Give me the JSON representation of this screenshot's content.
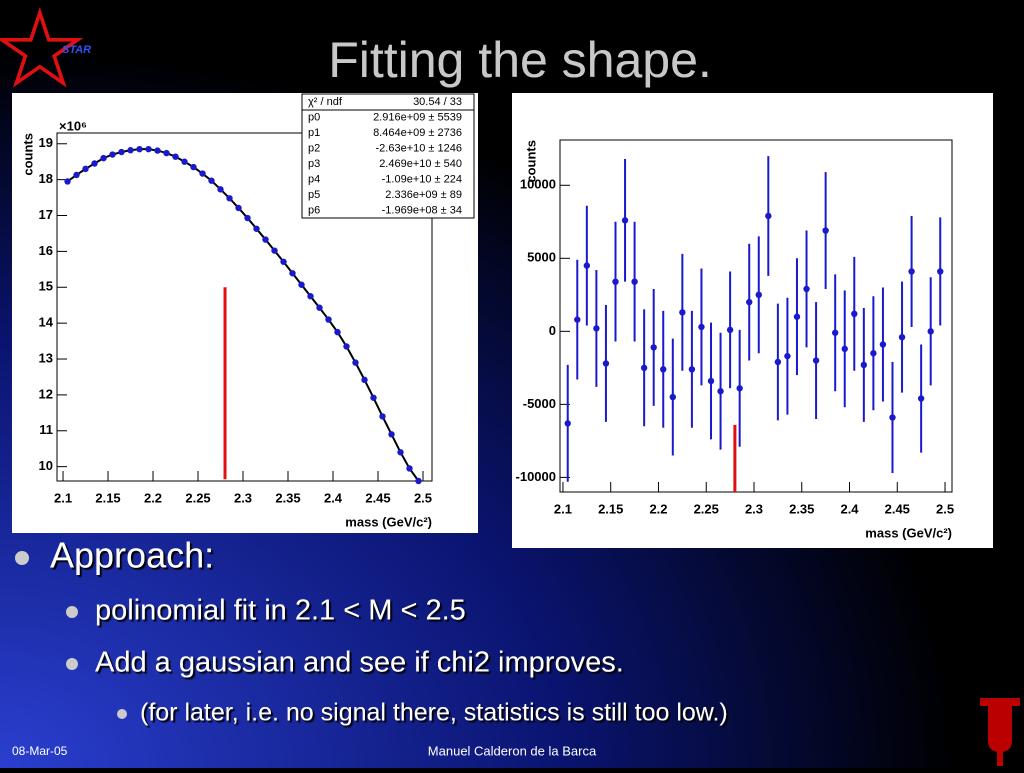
{
  "title": "Fitting the shape.",
  "logo": "STAR",
  "bullets": [
    {
      "level": 1,
      "text": "Approach:"
    },
    {
      "level": 2,
      "text": "polinomial fit in 2.1 < M < 2.5"
    },
    {
      "level": 2,
      "text": "Add a gaussian and see if chi2 improves."
    },
    {
      "level": 3,
      "text": "(for later, i.e. no signal there, statistics is still too low.)"
    }
  ],
  "footer": {
    "date": "08-Mar-05",
    "author": "Manuel Calderon de la Barca"
  },
  "chart_data": [
    {
      "type": "scatter",
      "xlabel": "mass (GeV/c²)",
      "ylabel": "counts",
      "multiplier": "×10⁶",
      "color": "#1a1acc",
      "line_color": "#000000",
      "x": [
        2.105,
        2.115,
        2.125,
        2.135,
        2.145,
        2.155,
        2.165,
        2.175,
        2.185,
        2.195,
        2.205,
        2.215,
        2.225,
        2.235,
        2.245,
        2.255,
        2.265,
        2.275,
        2.285,
        2.295,
        2.305,
        2.315,
        2.325,
        2.335,
        2.345,
        2.355,
        2.365,
        2.375,
        2.385,
        2.395,
        2.405,
        2.415,
        2.425,
        2.435,
        2.445,
        2.455,
        2.465,
        2.475,
        2.485,
        2.495
      ],
      "values": [
        17.95,
        18.13,
        18.3,
        18.45,
        18.6,
        18.7,
        18.77,
        18.82,
        18.85,
        18.85,
        18.81,
        18.74,
        18.64,
        18.5,
        18.35,
        18.17,
        17.97,
        17.73,
        17.48,
        17.21,
        16.93,
        16.63,
        16.33,
        16.02,
        15.71,
        15.39,
        15.07,
        14.75,
        14.43,
        14.1,
        13.75,
        13.35,
        12.9,
        12.42,
        11.92,
        11.4,
        10.9,
        10.4,
        9.95,
        9.6
      ],
      "xlim": [
        2.0933,
        2.51
      ],
      "ylim": [
        9.6,
        19.3
      ],
      "xticks": [
        2.1,
        2.15,
        2.2,
        2.25,
        2.3,
        2.35,
        2.4,
        2.45,
        2.5
      ],
      "yticks": [
        10,
        11,
        12,
        13,
        14,
        15,
        16,
        17,
        18,
        19
      ],
      "marker": {
        "x": 2.28,
        "y": [
          9.65,
          15
        ],
        "color": "#e01010"
      },
      "stats": [
        {
          "name": "χ² / ndf",
          "value": "30.54 / 33"
        },
        {
          "name": "p0",
          "value": "2.916e+09 ± 5539"
        },
        {
          "name": "p1",
          "value": "8.464e+09 ± 2736"
        },
        {
          "name": "p2",
          "value": "-2.63e+10 ± 1246"
        },
        {
          "name": "p3",
          "value": "2.469e+10 ± 540"
        },
        {
          "name": "p4",
          "value": "-1.09e+10 ± 224"
        },
        {
          "name": "p5",
          "value": "2.336e+09 ± 89"
        },
        {
          "name": "p6",
          "value": "-1.969e+08 ± 34"
        }
      ]
    },
    {
      "type": "scatter",
      "xlabel": "mass (GeV/c²)",
      "ylabel": "counts",
      "color": "#1a1acc",
      "x": [
        2.105,
        2.115,
        2.125,
        2.135,
        2.145,
        2.155,
        2.165,
        2.175,
        2.185,
        2.195,
        2.205,
        2.215,
        2.225,
        2.235,
        2.245,
        2.255,
        2.265,
        2.275,
        2.285,
        2.295,
        2.305,
        2.315,
        2.325,
        2.335,
        2.345,
        2.355,
        2.365,
        2.375,
        2.385,
        2.395,
        2.405,
        2.415,
        2.425,
        2.435,
        2.445,
        2.455,
        2.465,
        2.475,
        2.485,
        2.495
      ],
      "values": [
        -6300,
        800,
        4500,
        200,
        -2200,
        3400,
        7600,
        3400,
        -2500,
        -1100,
        -2600,
        -4500,
        1300,
        -2600,
        300,
        -3400,
        -4100,
        100,
        -3900,
        2000,
        2500,
        7900,
        -2100,
        -1700,
        1000,
        2900,
        -2000,
        6900,
        -100,
        -1200,
        1200,
        -2300,
        -1500,
        -900,
        -5900,
        -400,
        4100,
        -4600,
        0,
        4100
      ],
      "errors": [
        4000,
        4100,
        4100,
        4000,
        4000,
        4100,
        4200,
        4100,
        4000,
        4000,
        4000,
        4000,
        4000,
        4000,
        4000,
        4000,
        4000,
        4000,
        4000,
        4000,
        4000,
        4100,
        4000,
        4000,
        4000,
        4000,
        4000,
        4000,
        4000,
        4000,
        3900,
        3900,
        3900,
        3900,
        3800,
        3800,
        3800,
        3700,
        3700,
        3700
      ],
      "xlim": [
        2.0969,
        2.5073
      ],
      "ylim": [
        -11000,
        13100
      ],
      "xticks": [
        2.1,
        2.15,
        2.2,
        2.25,
        2.3,
        2.35,
        2.4,
        2.45,
        2.5
      ],
      "yticks": [
        -10000,
        -5000,
        0,
        5000,
        10000
      ],
      "marker": {
        "x": 2.28,
        "y": [
          -11000,
          -6400
        ],
        "color": "#e01010"
      }
    }
  ]
}
